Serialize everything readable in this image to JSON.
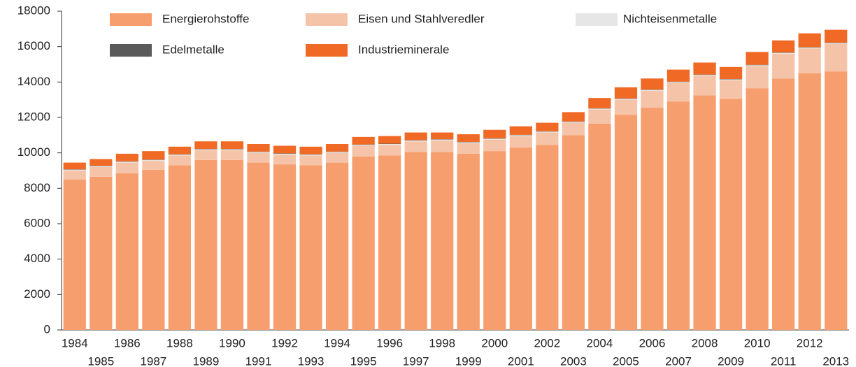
{
  "chart_data": {
    "type": "stacked_bar",
    "categories": [
      "1984",
      "1985",
      "1986",
      "1987",
      "1988",
      "1989",
      "1990",
      "1991",
      "1992",
      "1993",
      "1994",
      "1995",
      "1996",
      "1997",
      "1998",
      "1999",
      "2000",
      "2001",
      "2002",
      "2003",
      "2004",
      "2005",
      "2006",
      "2007",
      "2008",
      "2009",
      "2010",
      "2011",
      "2012",
      "2013"
    ],
    "series": [
      {
        "name": "Energierohstoffe",
        "color": "#f79e6e",
        "values": [
          8500,
          8650,
          8850,
          9050,
          9300,
          9600,
          9600,
          9450,
          9350,
          9300,
          9450,
          9800,
          9850,
          10050,
          10050,
          9950,
          10100,
          10300,
          10450,
          11000,
          11650,
          12150,
          12550,
          12900,
          13250,
          13050,
          13650,
          14200,
          14500,
          14600
        ]
      },
      {
        "name": "Eisen und Stahlveredler",
        "color": "#f5c4a8",
        "values": [
          500,
          550,
          600,
          500,
          550,
          550,
          550,
          550,
          550,
          550,
          550,
          600,
          600,
          600,
          650,
          600,
          650,
          650,
          700,
          700,
          800,
          850,
          950,
          1050,
          1100,
          1050,
          1250,
          1400,
          1400,
          1550
        ]
      },
      {
        "name": "Nichteisenmetalle",
        "color": "#e6e6e6",
        "values": [
          50,
          50,
          50,
          50,
          50,
          50,
          50,
          50,
          50,
          50,
          50,
          50,
          50,
          50,
          50,
          50,
          50,
          50,
          50,
          50,
          50,
          50,
          50,
          50,
          50,
          50,
          50,
          50,
          50,
          50
        ]
      },
      {
        "name": "Edelmetalle",
        "color": "#5a5a5a",
        "values": [
          20,
          20,
          20,
          20,
          20,
          20,
          20,
          20,
          20,
          20,
          20,
          20,
          20,
          20,
          20,
          20,
          20,
          20,
          20,
          20,
          20,
          20,
          20,
          20,
          20,
          20,
          20,
          20,
          20,
          20
        ]
      },
      {
        "name": "Industrieminerale",
        "color": "#f06a25",
        "values": [
          380,
          380,
          430,
          480,
          430,
          430,
          430,
          430,
          430,
          430,
          430,
          430,
          430,
          430,
          380,
          430,
          480,
          480,
          480,
          530,
          580,
          630,
          630,
          680,
          680,
          680,
          730,
          680,
          780,
          730
        ]
      }
    ],
    "ylim": [
      0,
      18000
    ],
    "yticks": [
      0,
      2000,
      4000,
      6000,
      8000,
      10000,
      12000,
      14000,
      16000,
      18000
    ]
  }
}
